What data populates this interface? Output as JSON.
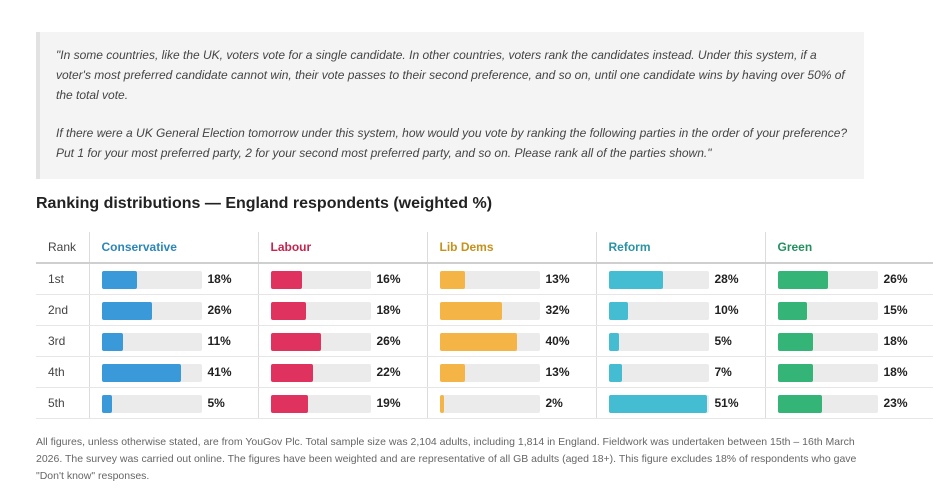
{
  "question": {
    "para1": "\"In some countries, like the UK, voters vote for a single candidate. In other countries, voters rank the candidates instead. Under this system, if a voter's most preferred candidate cannot win, their vote passes to their second preference, and so on, until one candidate wins by having over 50% of the total vote.",
    "para2": "If there were a UK General Election tomorrow under this system, how would you vote by ranking the following parties in the order of your preference? Put 1 for your most preferred party, 2 for your second most preferred party, and so on. Please rank all of the parties shown.\""
  },
  "chart_data": {
    "type": "table",
    "title": "Ranking distributions — England respondents (weighted %)",
    "rank_header": "Rank",
    "categories": [
      "1st",
      "2nd",
      "3rd",
      "4th",
      "5th"
    ],
    "unit": "%",
    "series": [
      {
        "name": "Conservative",
        "color": "#3a9ad9",
        "values": [
          18,
          26,
          11,
          41,
          5
        ]
      },
      {
        "name": "Labour",
        "color": "#e0325e",
        "values": [
          16,
          18,
          26,
          22,
          19
        ]
      },
      {
        "name": "Lib Dems",
        "color": "#f5b546",
        "values": [
          13,
          32,
          40,
          13,
          2
        ]
      },
      {
        "name": "Reform",
        "color": "#44bdd3",
        "values": [
          28,
          10,
          5,
          7,
          51
        ]
      },
      {
        "name": "Green",
        "color": "#35b477",
        "values": [
          26,
          15,
          18,
          18,
          23
        ]
      }
    ],
    "header_colors": [
      "#2c86b8",
      "#c4254f",
      "#c6921c",
      "#2a93a6",
      "#249060"
    ]
  },
  "footnote": "All figures, unless otherwise stated, are from YouGov Plc. Total sample size was 2,104 adults, including 1,814 in England. Fieldwork was undertaken between 15th – 16th March 2026. The survey was carried out online. The figures have been weighted and are representative of all GB adults (aged 18+). This figure excludes 18% of respondents who gave \"Don't know\" responses."
}
